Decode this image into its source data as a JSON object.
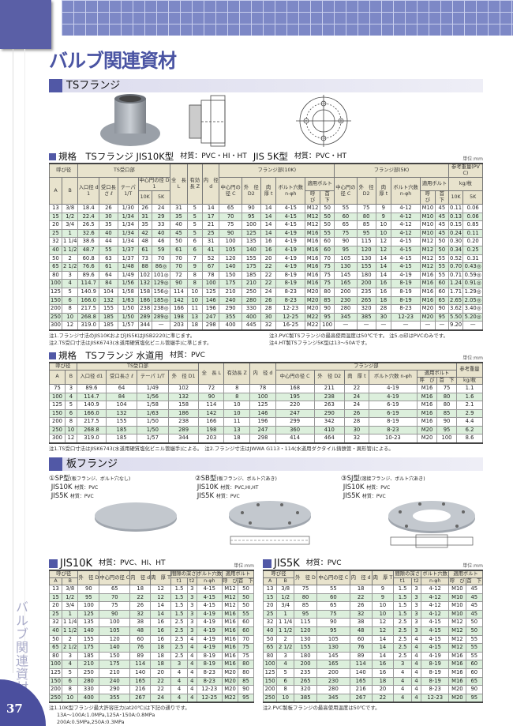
{
  "page": {
    "title": "バルブ関連資材",
    "side_label": "バルブ関連資材",
    "page_number": "37"
  },
  "colors": {
    "accent": "#4a54a3",
    "header_cell": "#e8e3cd",
    "alt_row": "#dcefdc"
  },
  "ts_section": {
    "label": "TSフランジ"
  },
  "t1": {
    "heading": "規格　TSフランジ  JIS10K型",
    "mat1": "材質：PVC・HI・HT",
    "heading2": "JIS 5K型",
    "mat2": "材質：PVC・HT",
    "unit": "単位:mm",
    "header": [
      [
        {
          "t": "呼び径",
          "c": 2
        },
        {
          "t": "TS受口部",
          "c": 5
        },
        {
          "t": "全　長 L",
          "r": 3
        },
        {
          "t": "有効長 Z",
          "r": 3
        },
        {
          "t": "内　径 d",
          "r": 3
        },
        {
          "t": "フランジ部(10K)",
          "c": 6
        },
        {
          "t": "フランジ部(5K)",
          "c": 6
        },
        {
          "t": "参考重量(PVC)",
          "c": 2
        }
      ],
      [
        {
          "t": "A",
          "r": 2
        },
        {
          "t": "B",
          "r": 2
        },
        {
          "t": "入口径 d1",
          "r": 2
        },
        {
          "t": "受口長さ ℓ",
          "r": 2
        },
        {
          "t": "テーパ 1/T",
          "r": 2
        },
        {
          "t": "中心円の径 D1",
          "c": 2
        },
        {
          "t": "中心円の径 C",
          "r": 2
        },
        {
          "t": "外　径 D2",
          "r": 2
        },
        {
          "t": "肉　厚 t",
          "r": 2
        },
        {
          "t": "ボルト穴数 n-φh",
          "r": 2
        },
        {
          "t": "適用ボルト",
          "c": 2
        },
        {
          "t": "中心円の径 C",
          "r": 2
        },
        {
          "t": "外　径 D2",
          "r": 2
        },
        {
          "t": "肉　厚 t",
          "r": 2
        },
        {
          "t": "ボルト穴数 n-φh",
          "r": 2
        },
        {
          "t": "適用ボルト",
          "c": 2
        },
        {
          "t": "kg/枚",
          "c": 2
        }
      ],
      [
        {
          "t": "10K"
        },
        {
          "t": "5K"
        },
        {
          "t": "呼　び"
        },
        {
          "t": "首　下"
        },
        {
          "t": "呼　び"
        },
        {
          "t": "首　下"
        },
        {
          "t": "10K"
        },
        {
          "t": "5K"
        }
      ]
    ],
    "rows": [
      [
        "13",
        "3/8",
        "18.4",
        "26",
        "1/30",
        "26",
        "24",
        "31",
        "5",
        "14",
        "65",
        "90",
        "14",
        "4-15",
        "M12",
        "50",
        "55",
        "75",
        "9",
        "4-12",
        "M10",
        "45",
        "0.11",
        "0.06"
      ],
      [
        "15",
        "1/2",
        "22.4",
        "30",
        "1/34",
        "31",
        "29",
        "35",
        "5",
        "17",
        "70",
        "95",
        "14",
        "4-15",
        "M12",
        "50",
        "60",
        "80",
        "9",
        "4-12",
        "M10",
        "45",
        "0.13",
        "0.06"
      ],
      [
        "20",
        "3/4",
        "26.5",
        "35",
        "1/34",
        "35",
        "33",
        "40",
        "5",
        "21",
        "75",
        "100",
        "14",
        "4-15",
        "M12",
        "50",
        "65",
        "85",
        "10",
        "4-12",
        "M10",
        "45",
        "0.15",
        "0.85"
      ],
      [
        "25",
        "1",
        "32.6",
        "40",
        "1/34",
        "42",
        "40",
        "45",
        "5",
        "25",
        "90",
        "125",
        "14",
        "4-19",
        "M16",
        "55",
        "75",
        "95",
        "10",
        "4-12",
        "M10",
        "45",
        "0.24",
        "0.11"
      ],
      [
        "32",
        "1 1/4",
        "38.6",
        "44",
        "1/34",
        "48",
        "46",
        "50",
        "6",
        "31",
        "100",
        "135",
        "16",
        "4-19",
        "M16",
        "60",
        "90",
        "115",
        "12",
        "4-15",
        "M12",
        "50",
        "0.30",
        "0.20"
      ],
      [
        "40",
        "1 1/2",
        "48.7",
        "55",
        "1/37",
        "61",
        "59",
        "61",
        "6",
        "41",
        "105",
        "140",
        "16",
        "4-19",
        "M16",
        "60",
        "95",
        "120",
        "12",
        "4-15",
        "M12",
        "50",
        "0.34",
        "0.25"
      ],
      [
        "50",
        "2",
        "60.8",
        "63",
        "1/37",
        "73",
        "70",
        "70",
        "7",
        "52",
        "120",
        "155",
        "20",
        "4-19",
        "M16",
        "70",
        "105",
        "130",
        "14",
        "4-15",
        "M12",
        "55",
        "0.52",
        "0.31"
      ],
      [
        "65",
        "2 1/2",
        "76.6",
        "61",
        "1/48",
        "88",
        "86◎",
        "70",
        "9",
        "67",
        "140",
        "175",
        "22",
        "4-19",
        "M16",
        "75",
        "130",
        "155",
        "14",
        "4-15",
        "M12",
        "55",
        "0.70",
        "0.43◎"
      ],
      [
        "80",
        "3",
        "89.6",
        "64",
        "1/49",
        "102",
        "101◎",
        "72",
        "8",
        "78",
        "150",
        "185",
        "22",
        "8-19",
        "M16",
        "75",
        "145",
        "180",
        "14",
        "4-19",
        "M16",
        "55",
        "0.71",
        "0.59◎"
      ],
      [
        "100",
        "4",
        "114.7",
        "84",
        "1/56",
        "132",
        "129◎",
        "90",
        "8",
        "100",
        "175",
        "210",
        "22",
        "8-19",
        "M16",
        "75",
        "165",
        "200",
        "16",
        "8-19",
        "M16",
        "60",
        "1.24",
        "0.91◎"
      ],
      [
        "125",
        "5",
        "140.9",
        "104",
        "1/58",
        "158",
        "156◎",
        "114",
        "10",
        "125",
        "210",
        "250",
        "24",
        "8-23",
        "M20",
        "80",
        "200",
        "235",
        "16",
        "8-19",
        "M16",
        "60",
        "1.71",
        "1.29◎"
      ],
      [
        "150",
        "6",
        "166.0",
        "132",
        "1/63",
        "186",
        "185◎",
        "142",
        "10",
        "146",
        "240",
        "280",
        "26",
        "8-23",
        "M20",
        "85",
        "230",
        "265",
        "18",
        "8-19",
        "M16",
        "65",
        "2.65",
        "2.05◎"
      ],
      [
        "200",
        "8",
        "217.5",
        "155",
        "1/50",
        "238",
        "238◎",
        "166",
        "11",
        "196",
        "290",
        "330",
        "28",
        "12-23",
        "M20",
        "90",
        "280",
        "320",
        "28",
        "8-23",
        "M20",
        "90",
        "3.62",
        "3.40◎"
      ],
      [
        "250",
        "10",
        "268.8",
        "185",
        "1/50",
        "289",
        "289◎",
        "198",
        "13",
        "247",
        "355",
        "400",
        "30",
        "12-25",
        "M22",
        "95",
        "345",
        "385",
        "30",
        "12-23",
        "M20",
        "95",
        "5.50",
        "5.20◎"
      ],
      [
        "300",
        "12",
        "319.0",
        "185",
        "1/57",
        "344",
        "—",
        "203",
        "18",
        "298",
        "400",
        "445",
        "32",
        "16-25",
        "M22",
        "100",
        "—",
        "—",
        "—",
        "—",
        "—",
        "—",
        "9.20",
        "—"
      ]
    ],
    "notes": [
      "注1.フランジ寸法のJIS10KおよびJIS5KはJISB2220に準じます。",
      "注2.TS受口寸法はJISK6743(水道用硬質塩化ビニル管継手)に準じます。",
      "注3.PVC製TSフランジの最高使用温度は50℃です。 注5.◎印はPVCのみです。",
      "注4.HT製TSフランジ5K型は13〜50Aです。"
    ]
  },
  "t2": {
    "heading": "規格　TSフランジ  水道用",
    "mat": "材質：PVC",
    "unit": "単位:mm",
    "header": [
      [
        {
          "t": "呼び径",
          "c": 2
        },
        {
          "t": "TS受口部",
          "c": 4
        },
        {
          "t": "全　長 L",
          "r": 3
        },
        {
          "t": "有効長 Z",
          "r": 3
        },
        {
          "t": "内　径 d",
          "r": 3
        },
        {
          "t": "フランジ部",
          "c": 6
        },
        {
          "t": "参考重量",
          "r": 2
        }
      ],
      [
        {
          "t": "A",
          "r": 2
        },
        {
          "t": "B",
          "r": 2
        },
        {
          "t": "入口径 d1",
          "r": 2
        },
        {
          "t": "受口長さ ℓ",
          "r": 2
        },
        {
          "t": "テーパ 1/T",
          "r": 2
        },
        {
          "t": "外　径 D1",
          "r": 2
        },
        {
          "t": "中心円の径 C",
          "r": 2
        },
        {
          "t": "外　径 D2",
          "r": 2
        },
        {
          "t": "肉　厚 t",
          "r": 2
        },
        {
          "t": "ボルト穴数 n-φh",
          "r": 2
        },
        {
          "t": "適用ボルト",
          "c": 2
        }
      ],
      [
        {
          "t": "呼　び"
        },
        {
          "t": "首　下"
        },
        {
          "t": "kg/枚"
        }
      ]
    ],
    "rows": [
      [
        "75",
        "3",
        "89.6",
        "64",
        "1/49",
        "102",
        "72",
        "8",
        "78",
        "168",
        "211",
        "22",
        "4-19",
        "M16",
        "75",
        "1.1"
      ],
      [
        "100",
        "4",
        "114.7",
        "84",
        "1/56",
        "132",
        "90",
        "8",
        "100",
        "195",
        "238",
        "24",
        "4-19",
        "M16",
        "80",
        "1.6"
      ],
      [
        "125",
        "5",
        "140.9",
        "104",
        "1/58",
        "158",
        "114",
        "10",
        "125",
        "220",
        "263",
        "24",
        "6-19",
        "M16",
        "80",
        "2.1"
      ],
      [
        "150",
        "6",
        "166.0",
        "132",
        "1/63",
        "186",
        "142",
        "10",
        "146",
        "247",
        "290",
        "26",
        "6-19",
        "M16",
        "85",
        "2.9"
      ],
      [
        "200",
        "8",
        "217.5",
        "155",
        "1/50",
        "238",
        "166",
        "11",
        "196",
        "299",
        "342",
        "28",
        "8-19",
        "M16",
        "90",
        "4.4"
      ],
      [
        "250",
        "10",
        "268.8",
        "185",
        "1/50",
        "289",
        "198",
        "13",
        "247",
        "360",
        "410",
        "30",
        "8-23",
        "M20",
        "95",
        "6.2"
      ],
      [
        "300",
        "12",
        "319.0",
        "185",
        "1/57",
        "344",
        "203",
        "18",
        "298",
        "414",
        "464",
        "32",
        "10-23",
        "M20",
        "100",
        "8.6"
      ]
    ],
    "notes": [
      "注1.TS受口寸法はJISK6743(水道用硬質塩化ビニル管継手)による。　注2.フランジ寸法はJWWA G113・114(水道用ダクタイル鋳鉄管・異形管)による。"
    ]
  },
  "plate_section": {
    "label": "板フランジ"
  },
  "types": [
    {
      "name": "①SP型",
      "desc": "(板フランジ、ボルト穴なし)",
      "l1": "JIS10K",
      "m1": "材質：PVC",
      "l2": "JIS5K",
      "m2": "材質：PVC"
    },
    {
      "name": "②SB型",
      "desc": "(板フランジ、ボルト穴あき)",
      "l1": "JIS10K",
      "m1": "材質：PVC,HI,HT",
      "l2": "JIS5K",
      "m2": "材質：PVC"
    },
    {
      "name": "③SJ型",
      "desc": "(溶接フランジ、ボルト穴あき)",
      "l1": "JIS10K",
      "m1": "材質：PVC",
      "l2": "JIS5K",
      "m2": "材質：PVC"
    }
  ],
  "t3": {
    "heading": "JIS10K",
    "mat": "材質：PVC、HI、HT",
    "unit": "単位:mm",
    "header": [
      [
        {
          "t": "呼び径",
          "c": 2
        },
        {
          "t": "外　径 D",
          "r": 2
        },
        {
          "t": "中心円の径 C",
          "r": 2
        },
        {
          "t": "内　径 d",
          "r": 2
        },
        {
          "t": "肉　厚 T",
          "r": 2
        },
        {
          "t": "間隙の深さ",
          "c": 2
        },
        {
          "t": "ボルト穴数",
          "r": 1
        },
        {
          "t": "適用ボルト",
          "c": 2
        }
      ],
      [
        {
          "t": "A"
        },
        {
          "t": "B"
        },
        {
          "t": "t1"
        },
        {
          "t": "t2"
        },
        {
          "t": "n-φh"
        },
        {
          "t": "呼　び"
        },
        {
          "t": "首　下"
        }
      ]
    ],
    "rows": [
      [
        "13",
        "3/8",
        "90",
        "65",
        "18",
        "12",
        "1.5",
        "3",
        "4-15",
        "M12",
        "50"
      ],
      [
        "15",
        "1/2",
        "95",
        "70",
        "22",
        "12",
        "1.5",
        "3",
        "4-15",
        "M12",
        "50"
      ],
      [
        "20",
        "3/4",
        "100",
        "75",
        "26",
        "14",
        "1.5",
        "3",
        "4-15",
        "M12",
        "50"
      ],
      [
        "25",
        "1",
        "125",
        "90",
        "32",
        "14",
        "1.5",
        "3",
        "4-19",
        "M16",
        "55"
      ],
      [
        "32",
        "1 1/4",
        "135",
        "100",
        "38",
        "16",
        "2.5",
        "3",
        "4-19",
        "M16",
        "60"
      ],
      [
        "40",
        "1 1/2",
        "140",
        "105",
        "48",
        "16",
        "2.5",
        "3",
        "4-19",
        "M16",
        "60"
      ],
      [
        "50",
        "2",
        "155",
        "120",
        "60",
        "16",
        "2.5",
        "4",
        "4-19",
        "M16",
        "70"
      ],
      [
        "65",
        "2 1/2",
        "175",
        "140",
        "76",
        "18",
        "2.5",
        "4",
        "4-19",
        "M16",
        "75"
      ],
      [
        "80",
        "3",
        "185",
        "150",
        "89",
        "18",
        "2.5",
        "4",
        "8-19",
        "M16",
        "75"
      ],
      [
        "100",
        "4",
        "210",
        "175",
        "114",
        "18",
        "3",
        "4",
        "8-19",
        "M16",
        "80"
      ],
      [
        "125",
        "5",
        "250",
        "210",
        "140",
        "20",
        "4",
        "4",
        "8-23",
        "M20",
        "80"
      ],
      [
        "150",
        "6",
        "280",
        "240",
        "165",
        "22",
        "4",
        "4",
        "8-23",
        "M20",
        "85"
      ],
      [
        "200",
        "8",
        "330",
        "290",
        "216",
        "22",
        "4",
        "4",
        "12-23",
        "M20",
        "90"
      ],
      [
        "250",
        "10",
        "400",
        "355",
        "267",
        "24",
        "4",
        "4",
        "12-25",
        "M22",
        "95"
      ]
    ],
    "notes": [
      "注1.10K型フランジ最大許容圧力(at20℃)は下記の通りです。",
      "13A〜100A:1.0MPa,125A･150A:0.8MPa",
      "200A:0.5MPa,250A:0.3MPa"
    ]
  },
  "t4": {
    "heading": "JIS5K",
    "mat": "材質：PVC",
    "unit": "単位:mm",
    "header": [
      [
        {
          "t": "呼び径",
          "c": 2
        },
        {
          "t": "外　径 D",
          "r": 2
        },
        {
          "t": "中心円の径 C",
          "r": 2
        },
        {
          "t": "内　径 d",
          "r": 2
        },
        {
          "t": "肉　厚 T",
          "r": 2
        },
        {
          "t": "間隙の深さ",
          "c": 2
        },
        {
          "t": "ボルト穴数",
          "r": 1
        },
        {
          "t": "適用ボルト",
          "c": 2
        }
      ],
      [
        {
          "t": "A"
        },
        {
          "t": "B"
        },
        {
          "t": "t1"
        },
        {
          "t": "t2"
        },
        {
          "t": "n-φh"
        },
        {
          "t": "呼　び"
        },
        {
          "t": "首　下"
        }
      ]
    ],
    "rows": [
      [
        "13",
        "3/8",
        "75",
        "55",
        "18",
        "9",
        "1.5",
        "3",
        "4-12",
        "M10",
        "45"
      ],
      [
        "15",
        "1/2",
        "80",
        "60",
        "22",
        "9",
        "1.5",
        "3",
        "4-12",
        "M10",
        "45"
      ],
      [
        "20",
        "3/4",
        "85",
        "65",
        "26",
        "10",
        "1.5",
        "3",
        "4-12",
        "M10",
        "45"
      ],
      [
        "25",
        "1",
        "95",
        "75",
        "32",
        "10",
        "1.5",
        "3",
        "4-12",
        "M10",
        "45"
      ],
      [
        "32",
        "1 1/4",
        "115",
        "90",
        "38",
        "12",
        "2.5",
        "3",
        "4-15",
        "M12",
        "50"
      ],
      [
        "40",
        "1 1/2",
        "120",
        "95",
        "48",
        "12",
        "2.5",
        "3",
        "4-15",
        "M12",
        "50"
      ],
      [
        "50",
        "2",
        "130",
        "105",
        "60",
        "14",
        "2.5",
        "4",
        "4-15",
        "M12",
        "55"
      ],
      [
        "65",
        "2 1/2",
        "155",
        "130",
        "76",
        "14",
        "2.5",
        "4",
        "4-15",
        "M12",
        "55"
      ],
      [
        "80",
        "3",
        "180",
        "145",
        "89",
        "14",
        "2.5",
        "4",
        "4-19",
        "M16",
        "55"
      ],
      [
        "100",
        "4",
        "200",
        "165",
        "114",
        "16",
        "3",
        "4",
        "8-19",
        "M16",
        "60"
      ],
      [
        "125",
        "5",
        "235",
        "200",
        "140",
        "16",
        "4",
        "4",
        "8-19",
        "M16",
        "60"
      ],
      [
        "150",
        "6",
        "265",
        "230",
        "165",
        "18",
        "4",
        "4",
        "8-19",
        "M16",
        "65"
      ],
      [
        "200",
        "8",
        "320",
        "280",
        "216",
        "20",
        "4",
        "4",
        "8-23",
        "M20",
        "90"
      ],
      [
        "250",
        "10",
        "385",
        "345",
        "267",
        "22",
        "4",
        "4",
        "12-23",
        "M20",
        "95"
      ]
    ],
    "notes": [
      "注2.PVC製板フランジの最高使用温度は50℃です。"
    ]
  }
}
